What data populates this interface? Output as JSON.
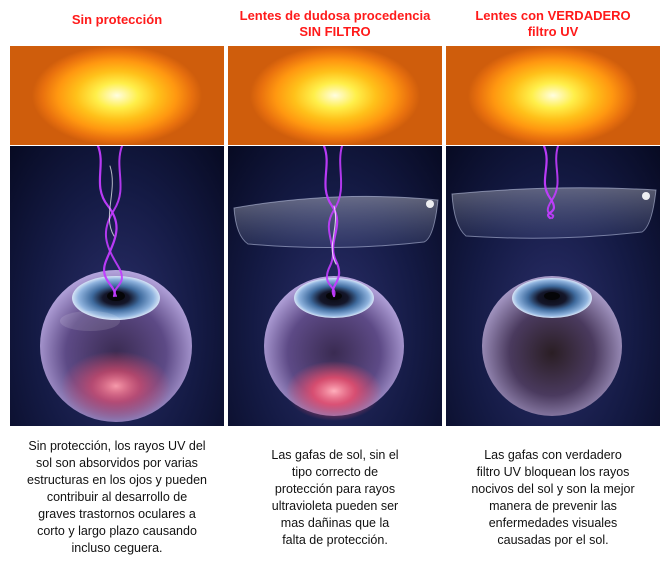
{
  "panels": [
    {
      "title": "Sin protección",
      "description_lines": [
        "Sin protección, los rayos UV del",
        "sol son absorvidos por varias",
        "estructuras en los ojos y pueden",
        "contribuir al desarrollo de",
        "graves trastornos oculares a",
        "corto y largo plazo causando",
        "incluso ceguera."
      ]
    },
    {
      "title_lines": [
        "Lentes de dudosa procedencia",
        "SIN FILTRO"
      ],
      "description_lines": [
        "Las gafas de sol, sin el",
        "tipo correcto de",
        "protección para rayos",
        "ultravioleta pueden ser",
        "mas dañinas que la",
        "falta de protección."
      ]
    },
    {
      "title_lines": [
        "Lentes con VERDADERO",
        "filtro UV"
      ],
      "description_lines": [
        "Las gafas con verdadero",
        "filtro UV bloquean los rayos",
        "nocivos del sol y son la mejor",
        "manera de prevenir las",
        "enfermedades visuales",
        "causadas por el sol."
      ]
    }
  ],
  "colors": {
    "title": "#ff1a1a",
    "ray": "#c23cff",
    "eye_glow": "#ff4f6b"
  }
}
